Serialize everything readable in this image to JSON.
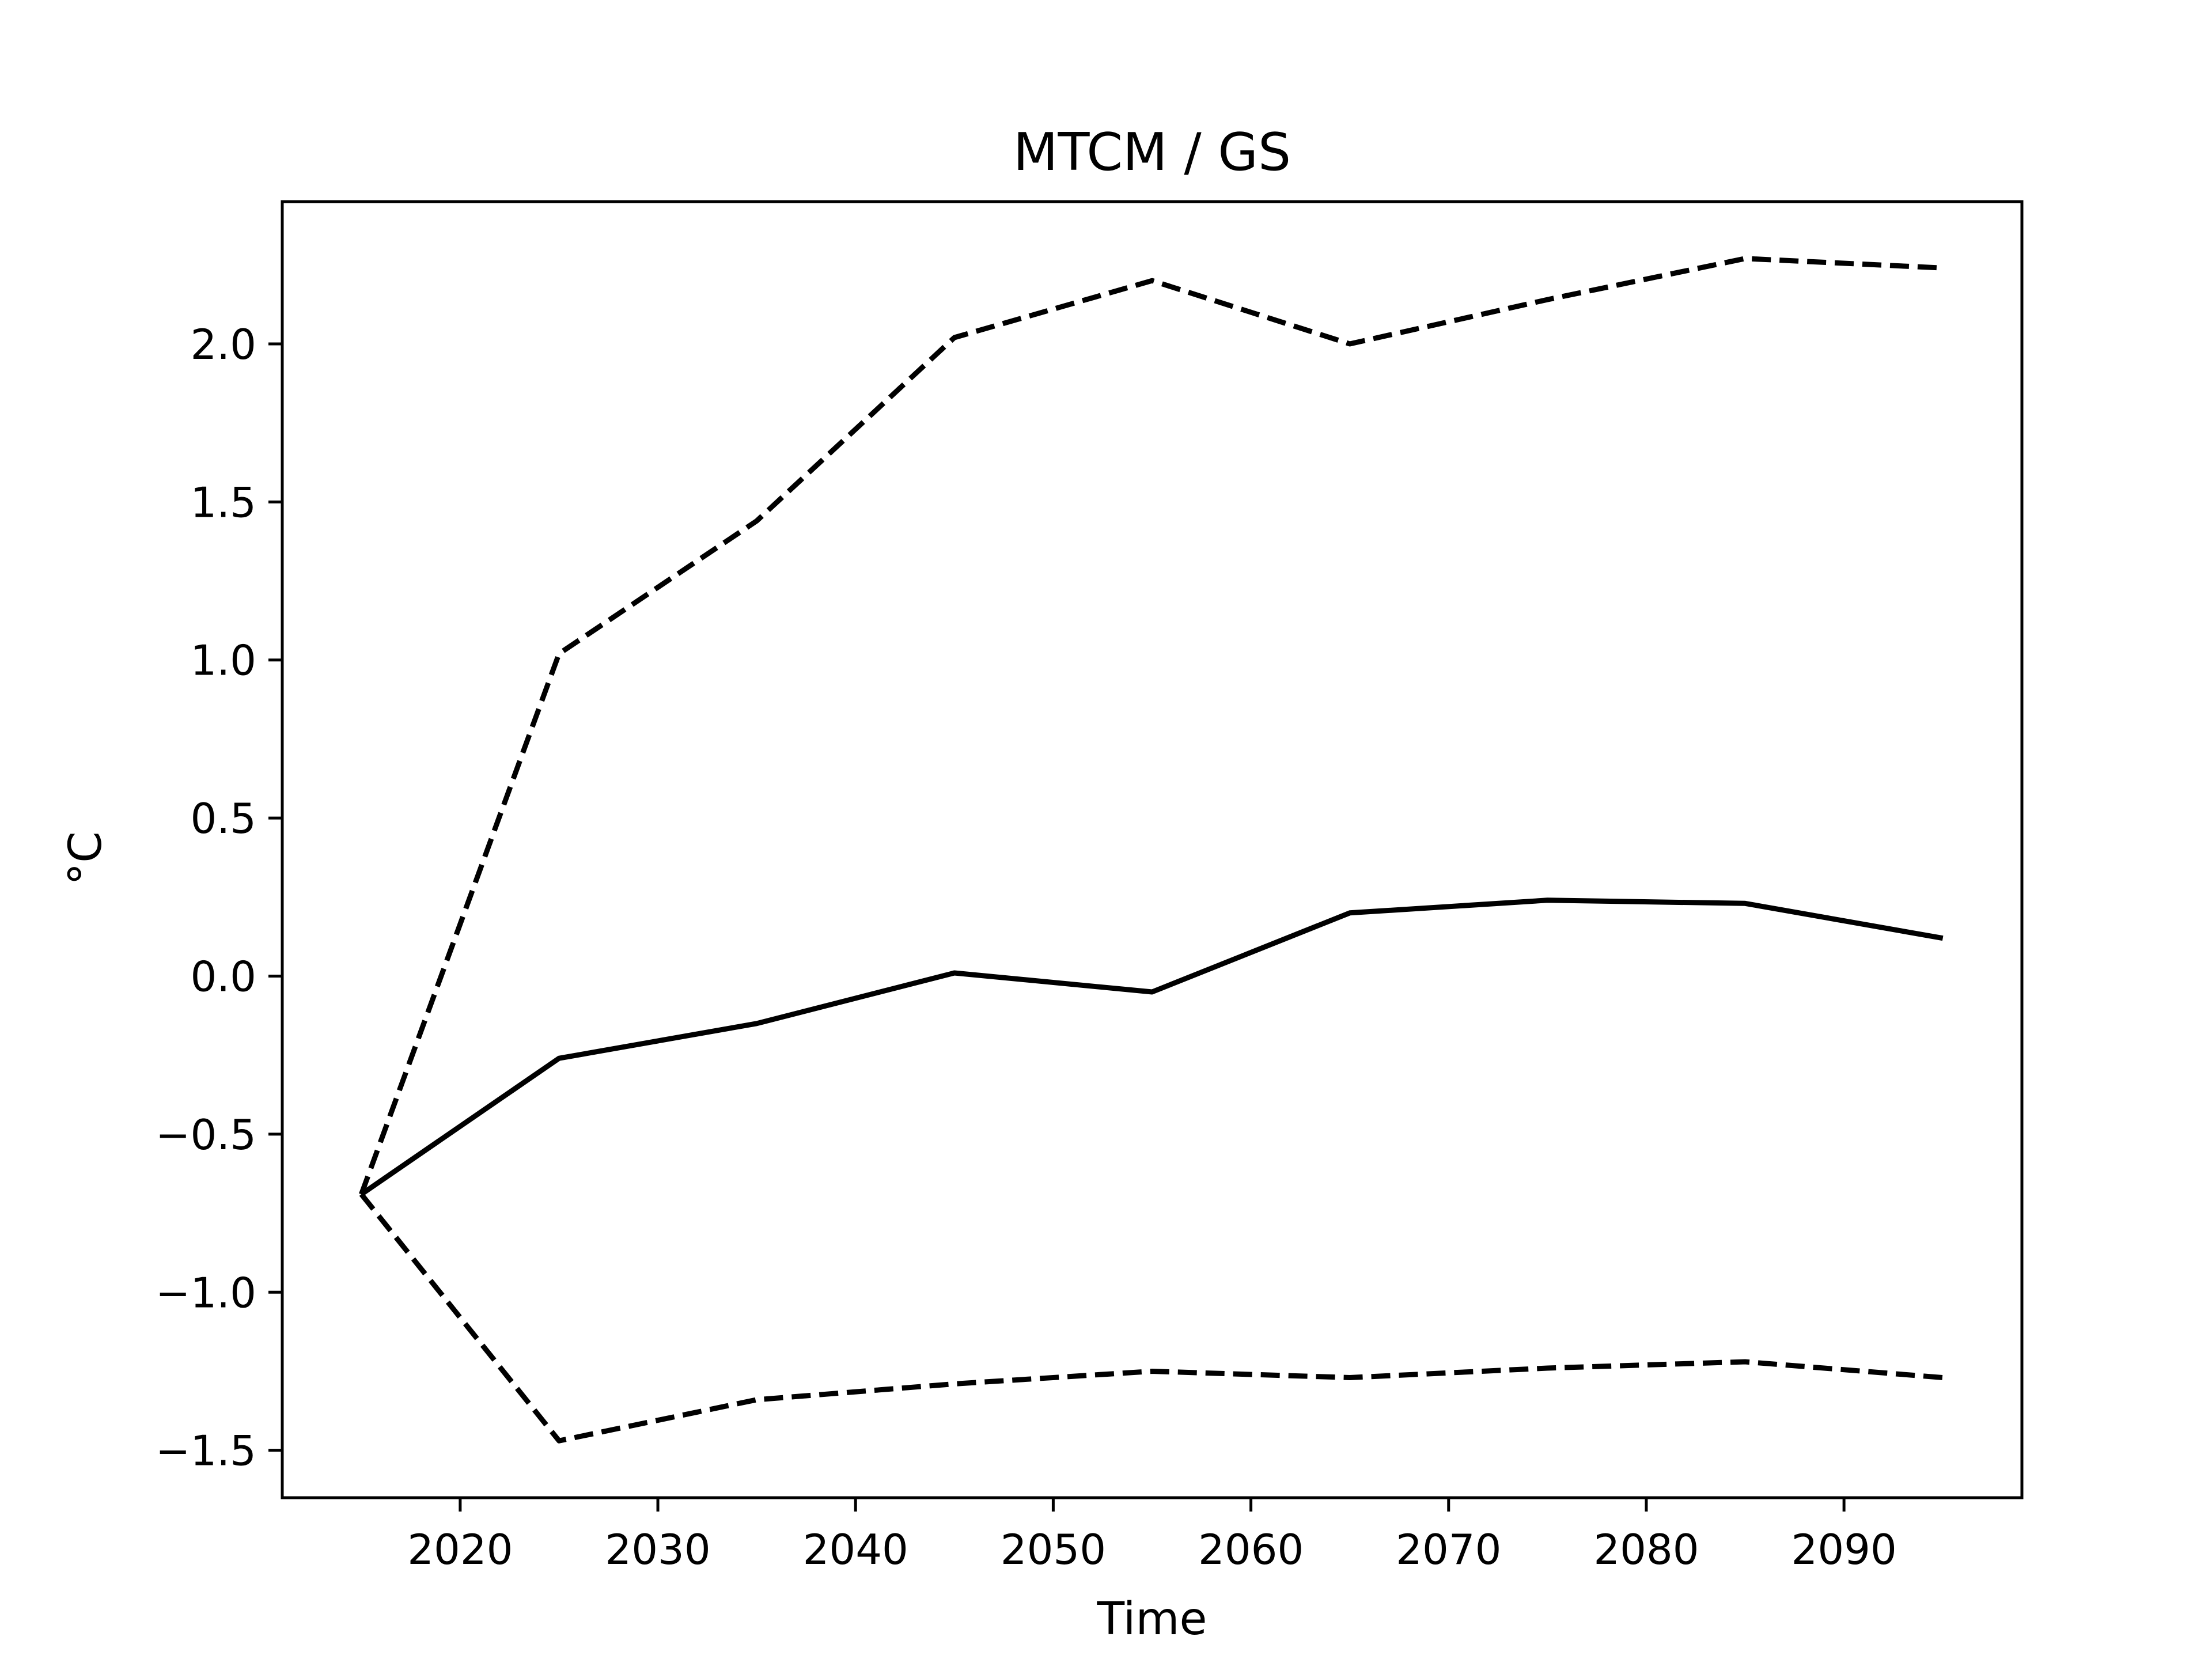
{
  "chart_data": {
    "type": "line",
    "title": "MTCM / GS",
    "xlabel": "Time",
    "ylabel": "°C",
    "xlim": [
      2011,
      2099
    ],
    "ylim": [
      -1.65,
      2.45
    ],
    "xticks": [
      2020,
      2030,
      2040,
      2050,
      2060,
      2070,
      2080,
      2090
    ],
    "yticks": [
      -1.5,
      -1.0,
      -0.5,
      0.0,
      0.5,
      1.0,
      1.5,
      2.0
    ],
    "ytick_labels": [
      "−1.5",
      "−1.0",
      "−0.5",
      "0.0",
      "0.5",
      "1.0",
      "1.5",
      "2.0"
    ],
    "grid": false,
    "color": "#000000",
    "x": [
      2015,
      2025,
      2035,
      2045,
      2055,
      2065,
      2075,
      2085,
      2095
    ],
    "series": [
      {
        "style": "solid",
        "values": [
          -0.69,
          -0.26,
          -0.15,
          0.01,
          -0.05,
          0.2,
          0.24,
          0.23,
          0.12
        ]
      },
      {
        "style": "dashed",
        "values": [
          -0.69,
          1.02,
          1.44,
          2.02,
          2.2,
          2.0,
          2.14,
          2.27,
          2.24
        ]
      },
      {
        "style": "dashed",
        "values": [
          -0.69,
          -1.47,
          -1.34,
          -1.29,
          -1.25,
          -1.27,
          -1.24,
          -1.22,
          -1.27
        ]
      }
    ]
  }
}
